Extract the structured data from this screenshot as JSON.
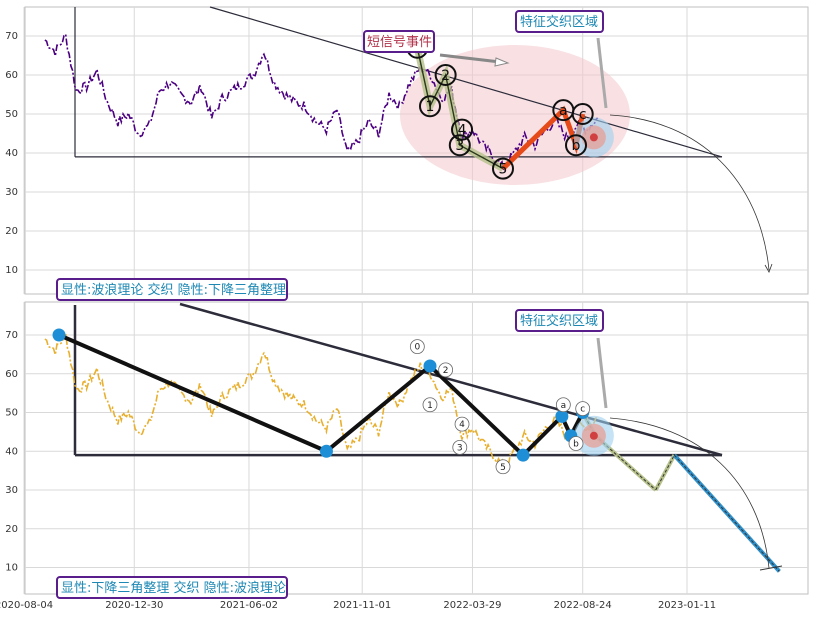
{
  "chart_data": [
    {
      "type": "line",
      "panel": "top",
      "ylim": [
        3,
        78
      ],
      "y_ticks": [
        10,
        20,
        30,
        40,
        50,
        60,
        70
      ],
      "grid": true,
      "series": [
        {
          "color": "#4b0082",
          "style": "dash-dot",
          "x": [
            "2020-09-01",
            "2020-09-15",
            "2020-09-29",
            "2020-10-13",
            "2020-10-27",
            "2020-11-10",
            "2020-11-24",
            "2020-12-08",
            "2020-12-22",
            "2021-01-05",
            "2021-01-19",
            "2021-02-02",
            "2021-02-16",
            "2021-03-02",
            "2021-03-16",
            "2021-03-30",
            "2021-04-13",
            "2021-04-27",
            "2021-05-11",
            "2021-05-25",
            "2021-06-08",
            "2021-06-22",
            "2021-07-06",
            "2021-07-20",
            "2021-08-03",
            "2021-08-17",
            "2021-08-31",
            "2021-09-14",
            "2021-09-28",
            "2021-10-12",
            "2021-10-26",
            "2021-11-09",
            "2021-11-23",
            "2021-12-07",
            "2021-12-21",
            "2022-01-04",
            "2022-01-18",
            "2022-02-01",
            "2022-02-15",
            "2022-03-01",
            "2022-03-15",
            "2022-03-29",
            "2022-04-12",
            "2022-04-26",
            "2022-05-10",
            "2022-05-24",
            "2022-06-07",
            "2022-06-21",
            "2022-07-05",
            "2022-07-19",
            "2022-08-02",
            "2022-08-16",
            "2022-08-30",
            "2022-09-13"
          ],
          "values": [
            69,
            66,
            70,
            56,
            57,
            61,
            53,
            48,
            50,
            45,
            47,
            56,
            58,
            55,
            53,
            57,
            49,
            54,
            56,
            58,
            60,
            66,
            58,
            55,
            53,
            52,
            48,
            46,
            51,
            40,
            43,
            48,
            45,
            55,
            52,
            58,
            62,
            60,
            54,
            56,
            44,
            46,
            42,
            39,
            36,
            40,
            44,
            42,
            46,
            48,
            44,
            47,
            46,
            49
          ]
        }
      ],
      "wave_labels": [
        {
          "label": "0",
          "x": "2022-01-14",
          "y": 67
        },
        {
          "label": "1",
          "x": "2022-01-31",
          "y": 52
        },
        {
          "label": "2",
          "x": "2022-02-21",
          "y": 60
        },
        {
          "label": "3",
          "x": "2022-03-12",
          "y": 42
        },
        {
          "label": "4",
          "x": "2022-03-15",
          "y": 46
        },
        {
          "label": "5",
          "x": "2022-05-09",
          "y": 36
        },
        {
          "label": "a",
          "x": "2022-07-29",
          "y": 51
        },
        {
          "label": "b",
          "x": "2022-08-15",
          "y": 42
        },
        {
          "label": "c",
          "x": "2022-08-24",
          "y": 50
        }
      ],
      "annotations": {
        "short_signal": "短信号事件",
        "feature_zone": "特征交织区域",
        "panel_label": "显性:波浪理论 交织 隐性:下降三角整理"
      }
    },
    {
      "type": "line",
      "panel": "bottom",
      "ylim": [
        6,
        78
      ],
      "y_ticks": [
        10,
        20,
        30,
        40,
        50,
        60,
        70
      ],
      "grid": true,
      "series": [
        {
          "color": "#e8b030",
          "style": "dash-dot",
          "values_same_as_top": true
        }
      ],
      "pivots": [
        {
          "x": "2020-09-20",
          "y": 70
        },
        {
          "x": "2021-09-14",
          "y": 40
        },
        {
          "x": "2022-01-31",
          "y": 62
        },
        {
          "x": "2022-06-05",
          "y": 39
        },
        {
          "x": "2022-07-27",
          "y": 49
        },
        {
          "x": "2022-08-08",
          "y": 44
        },
        {
          "x": "2022-08-24",
          "y": 50
        }
      ],
      "projection": [
        {
          "x": "2022-09-10",
          "y": 44
        },
        {
          "x": "2022-11-30",
          "y": 30
        },
        {
          "x": "2022-12-25",
          "y": 39
        },
        {
          "x": "2023-05-15",
          "y": 9
        }
      ],
      "wave_labels": [
        {
          "label": "0",
          "x": "2022-01-14",
          "y": 67
        },
        {
          "label": "1",
          "x": "2022-01-31",
          "y": 52
        },
        {
          "label": "2",
          "x": "2022-02-21",
          "y": 61
        },
        {
          "label": "4",
          "x": "2022-03-15",
          "y": 47
        },
        {
          "label": "3",
          "x": "2022-03-12",
          "y": 41
        },
        {
          "label": "5",
          "x": "2022-05-09",
          "y": 36
        },
        {
          "label": "a",
          "x": "2022-07-29",
          "y": 52
        },
        {
          "label": "b",
          "x": "2022-08-15",
          "y": 42
        },
        {
          "label": "c",
          "x": "2022-08-24",
          "y": 51
        }
      ],
      "annotations": {
        "feature_zone": "特征交织区域",
        "panel_label": "显性:下降三角整理 交织 隐性:波浪理论"
      }
    }
  ],
  "x_axis_ticks": [
    "2020-08-04",
    "2020-12-30",
    "2021-06-02",
    "2021-11-01",
    "2022-03-29",
    "2022-08-24",
    "2023-01-11"
  ],
  "colors": {
    "wave_highlight": "#b5c08a",
    "fast_segment": "#e64a19",
    "pivot_marker": "#1e8fd6",
    "triangle_line": "#2c2c3a",
    "ellipse_fill": "#f3c6cc",
    "label_border": "#5a1e8c",
    "label_text": "#1e88b4",
    "short_text": "#b0334a"
  }
}
